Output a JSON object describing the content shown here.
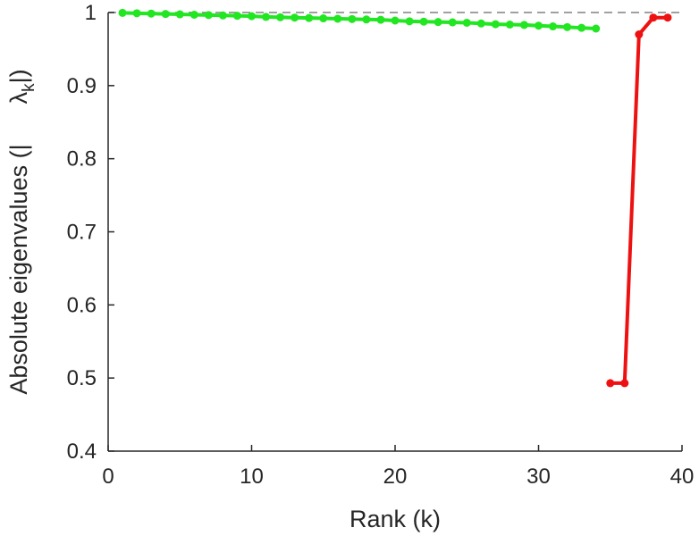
{
  "chart_data": {
    "type": "line",
    "xlabel": "Rank (k)",
    "ylabel_parts": {
      "prefix": "Absolute eigenvalues (|",
      "symbol": "λ",
      "subscript": "k",
      "suffix": "|)"
    },
    "xlim": [
      0,
      40
    ],
    "ylim": [
      0.4,
      1
    ],
    "xticks": [
      0,
      10,
      20,
      30,
      40
    ],
    "yticks": [
      0.4,
      0.5,
      0.6,
      0.7,
      0.8,
      0.9,
      1
    ],
    "ytick_labels": [
      "0.4",
      "0.5",
      "0.6",
      "0.7",
      "0.8",
      "0.9",
      "1"
    ],
    "grid": false,
    "reference_line": {
      "y": 1,
      "style": "dashed",
      "color": "#808080"
    },
    "series": [
      {
        "color": "#22e622",
        "x": [
          1,
          2,
          3,
          4,
          5,
          6,
          7,
          8,
          9,
          10,
          11,
          12,
          13,
          14,
          15,
          16,
          17,
          18,
          19,
          20,
          21,
          22,
          23,
          24,
          25,
          26,
          27,
          28,
          29,
          30,
          31,
          32,
          33,
          34
        ],
        "values": [
          0.9995,
          0.999,
          0.9985,
          0.998,
          0.9975,
          0.997,
          0.9965,
          0.996,
          0.9955,
          0.995,
          0.994,
          0.9935,
          0.993,
          0.9925,
          0.992,
          0.9915,
          0.991,
          0.9905,
          0.99,
          0.989,
          0.988,
          0.9875,
          0.987,
          0.9865,
          0.986,
          0.985,
          0.984,
          0.9835,
          0.983,
          0.982,
          0.981,
          0.98,
          0.979,
          0.978
        ]
      },
      {
        "color": "#ee1111",
        "x": [
          35,
          36,
          37,
          38,
          39
        ],
        "values": [
          0.493,
          0.493,
          0.97,
          0.993,
          0.993
        ]
      }
    ]
  }
}
